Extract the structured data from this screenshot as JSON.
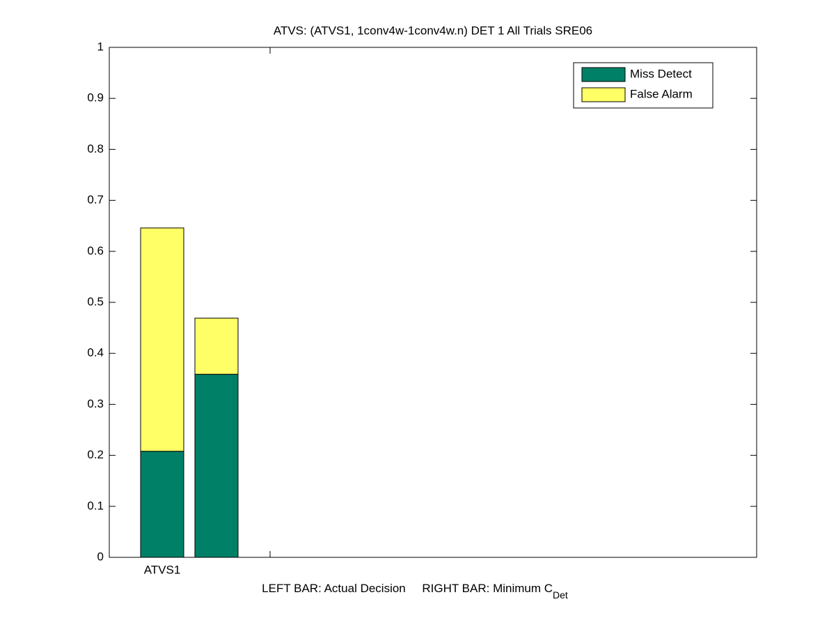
{
  "chart_data": {
    "type": "stacked_bar",
    "title": "ATVS: (ATVS1, 1conv4w-1conv4w.n) DET 1 All Trials SRE06",
    "x_label": "LEFT BAR: Actual Decision     RIGHT BAR: Minimum C",
    "x_label_subscript": "Det",
    "categories": [
      "ATVS1",
      null
    ],
    "series": [
      {
        "name": "Miss Detect",
        "color": "#008066",
        "values": [
          0.208,
          0.359
        ]
      },
      {
        "name": "False Alarm",
        "color": "#ffff66",
        "values": [
          0.438,
          0.11
        ]
      }
    ],
    "ylim": [
      0,
      1
    ],
    "yticks": [
      0,
      0.1,
      0.2,
      0.3,
      0.4,
      0.5,
      0.6,
      0.7,
      0.8,
      0.9,
      1
    ],
    "legend": "upper right"
  }
}
